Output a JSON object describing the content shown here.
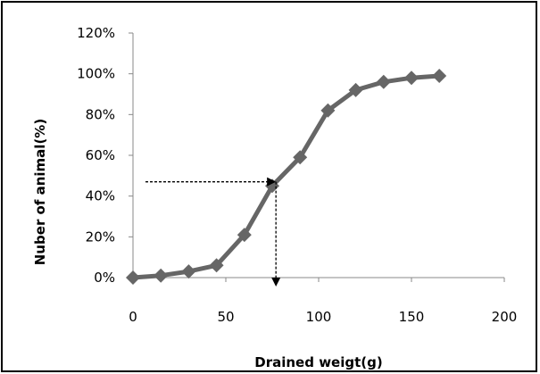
{
  "chart_data": {
    "type": "line",
    "title": "",
    "xlabel": "Drained weigt(g)",
    "ylabel": "Nuber of animal(%)",
    "xlim": [
      0,
      200
    ],
    "ylim": [
      0,
      120
    ],
    "xticks": [
      "0",
      "50",
      "100",
      "150",
      "200"
    ],
    "yticks": [
      "0%",
      "20%",
      "40%",
      "60%",
      "80%",
      "100%",
      "120%"
    ],
    "grid": false,
    "legend": "none",
    "series": [
      {
        "x": [
          0,
          15,
          30,
          45,
          60,
          75,
          90,
          105,
          120,
          135,
          150,
          165
        ],
        "y": [
          0,
          1,
          3,
          6,
          21,
          45,
          59,
          82,
          92,
          96,
          98,
          99
        ],
        "color": "#666666",
        "marker": "diamond"
      }
    ],
    "annotation": {
      "type": "dashed-arrows",
      "x": 77,
      "y": 47,
      "color": "#000000"
    }
  }
}
